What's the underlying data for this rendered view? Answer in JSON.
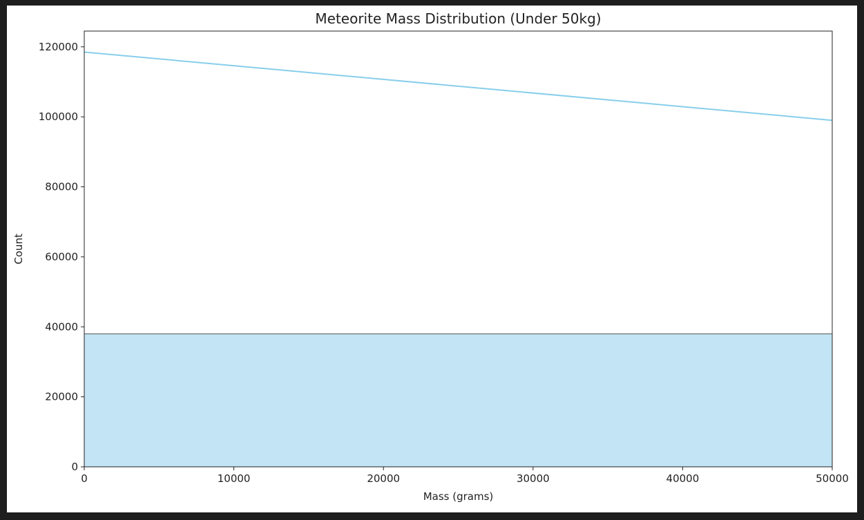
{
  "chart_data": {
    "type": "bar",
    "title": "Meteorite Mass Distribution (Under 50kg)",
    "xlabel": "Mass (grams)",
    "ylabel": "Count",
    "xlim": [
      0,
      50000
    ],
    "ylim": [
      0,
      124500
    ],
    "x_ticks": [
      0,
      10000,
      20000,
      30000,
      40000,
      50000
    ],
    "y_ticks": [
      0,
      20000,
      40000,
      60000,
      80000,
      100000,
      120000
    ],
    "bins": [
      {
        "x0": 0,
        "x1": 50000,
        "count": 38000
      }
    ],
    "kde_line": {
      "x": [
        0,
        50000
      ],
      "y": [
        118500,
        99000
      ]
    },
    "grid": false,
    "legend": "none",
    "colors": {
      "bar_fill": "#c2e4f4",
      "bar_edge": "#555555",
      "line": "#87ceeb",
      "axis": "#222222"
    }
  }
}
